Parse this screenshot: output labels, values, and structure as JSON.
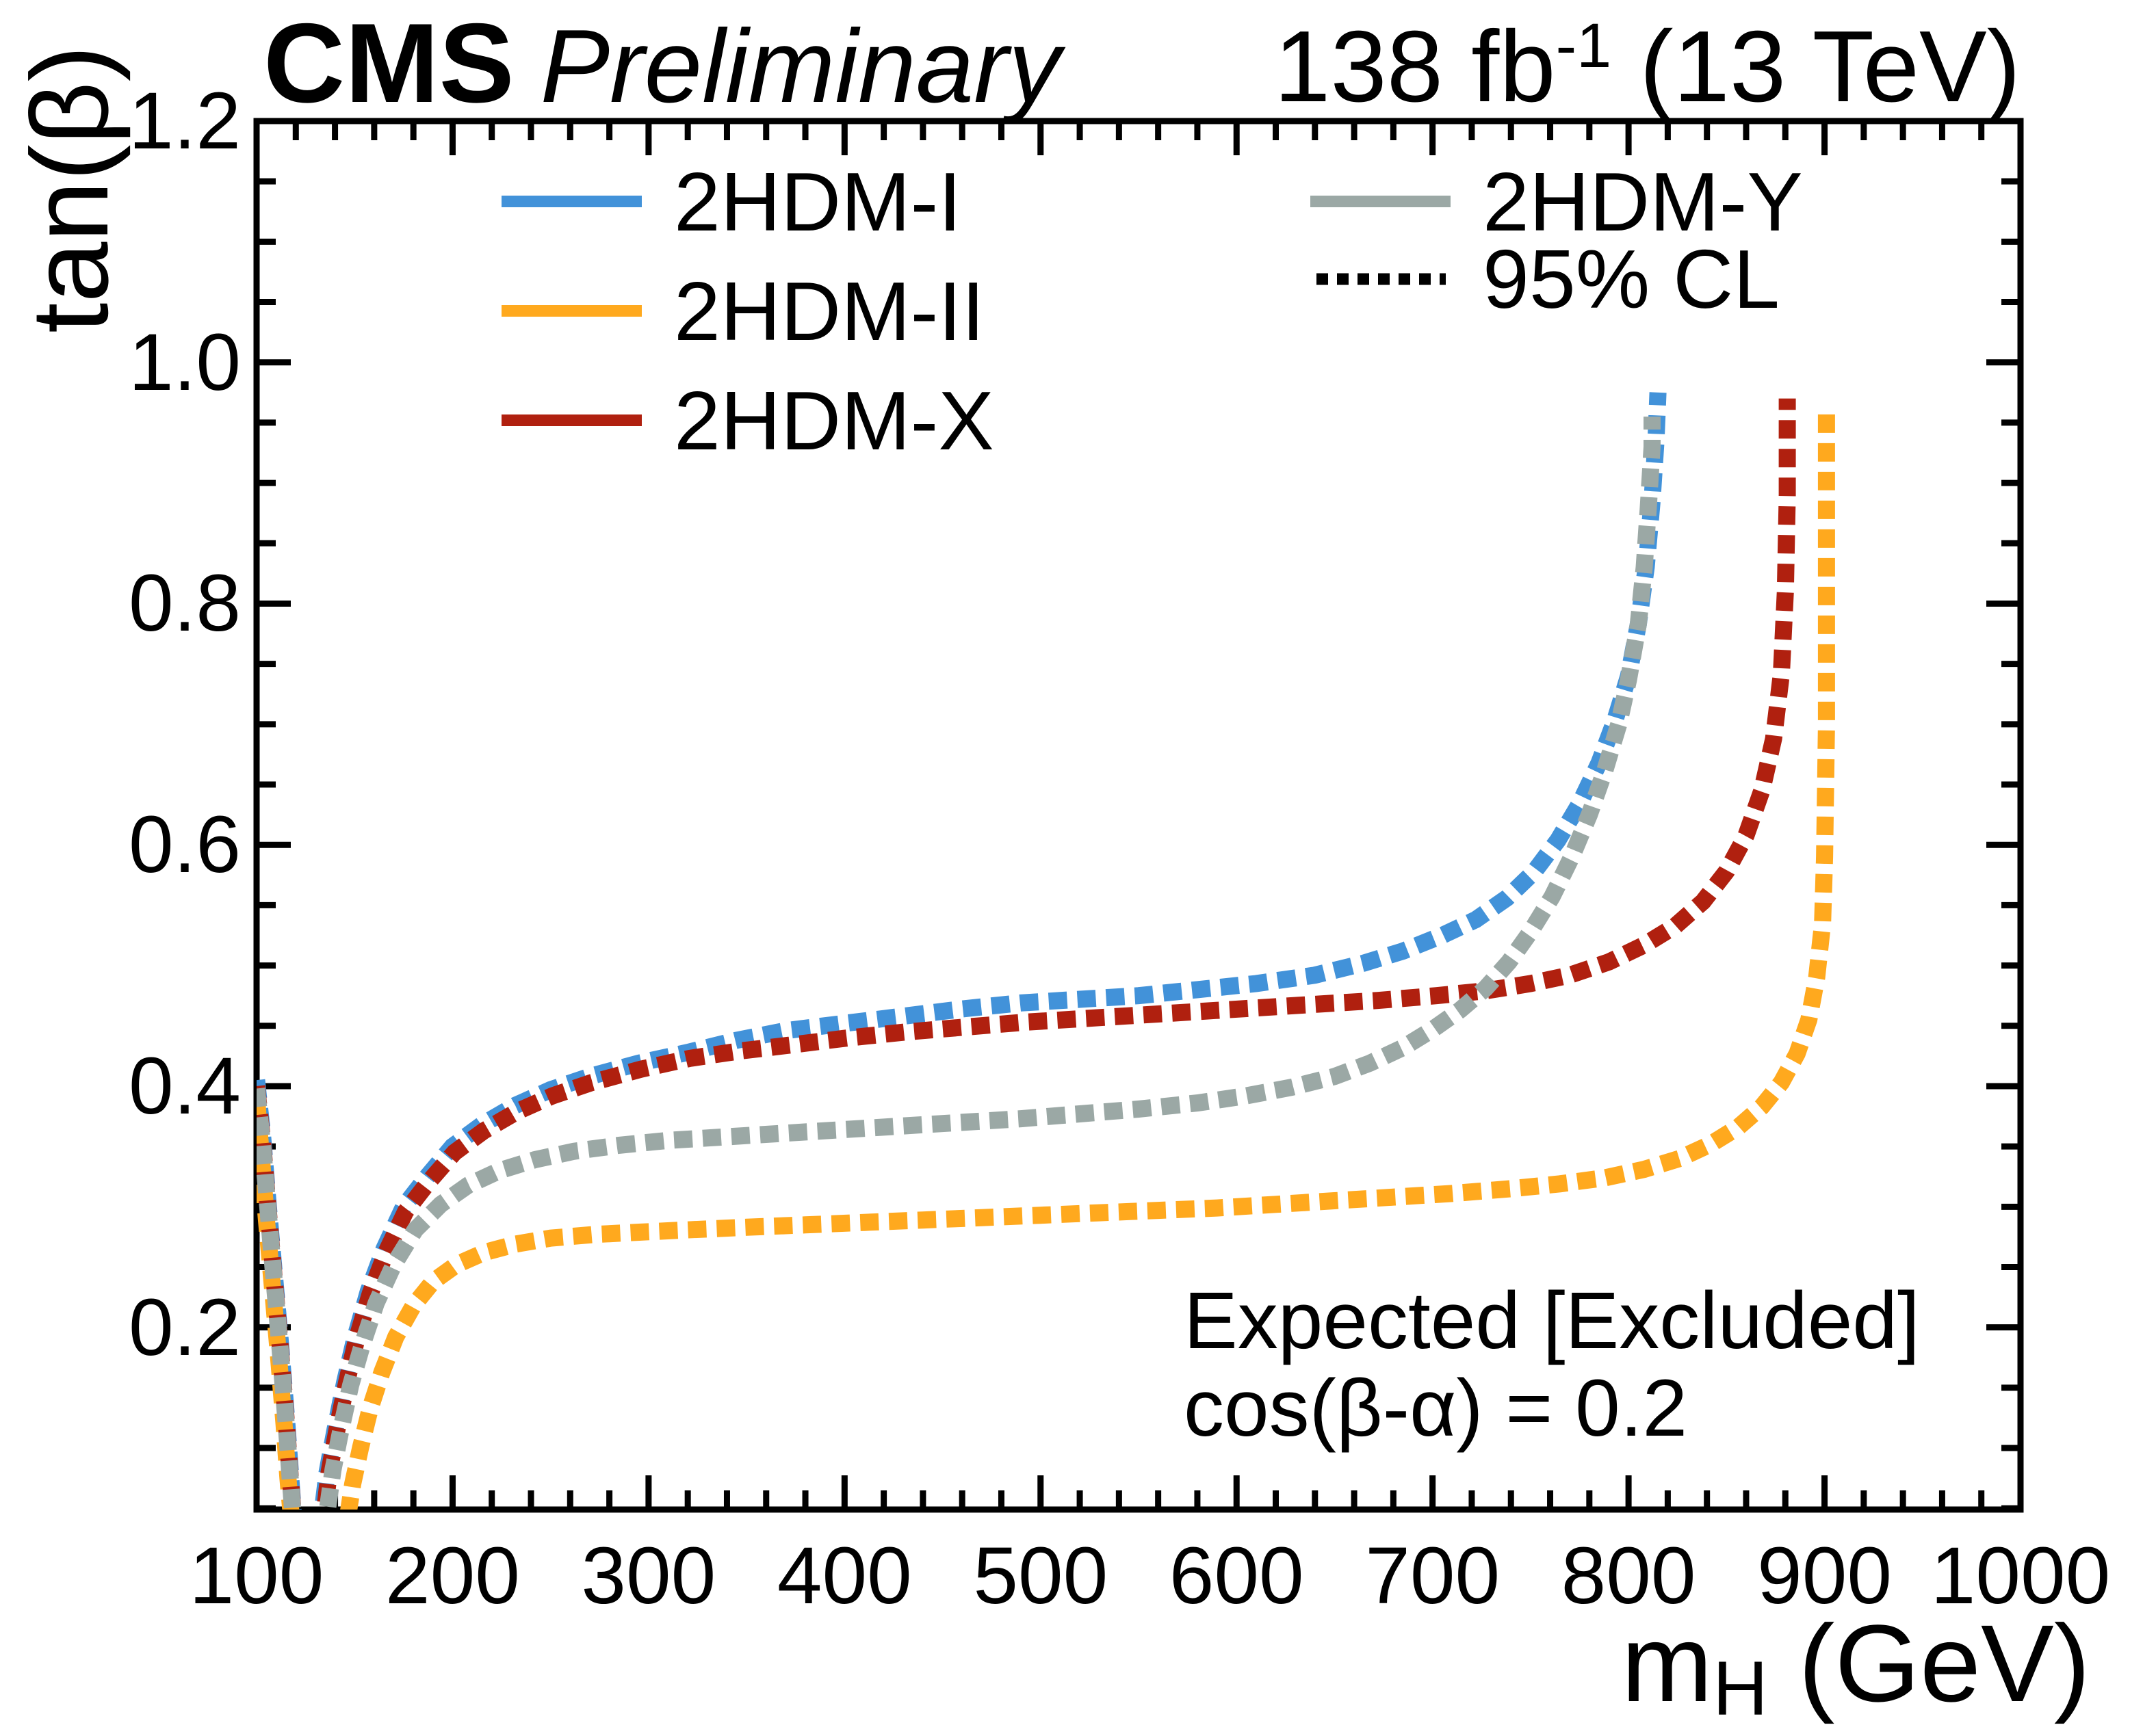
{
  "header": {
    "experiment": "CMS",
    "status": "Preliminary",
    "lumi_value": "138 fb",
    "lumi_exponent": "-1",
    "lumi_energy": " (13 TeV)"
  },
  "legend": {
    "left": [
      {
        "label": "2HDM-I",
        "color": "#4292D9",
        "line": "solid"
      },
      {
        "label": "2HDM-II",
        "color": "#FFA91E",
        "line": "solid"
      },
      {
        "label": "2HDM-X",
        "color": "#B0200F",
        "line": "solid"
      }
    ],
    "right": [
      {
        "label": "2HDM-Y",
        "color": "#9BA8A5",
        "line": "solid"
      },
      {
        "label": "95% CL",
        "color": "#000000",
        "line": "dotted"
      }
    ]
  },
  "chart_data": {
    "type": "line",
    "title": "",
    "xlabel_main": "m",
    "xlabel_sub": "H",
    "xlabel_rest": " (GeV)",
    "ylabel": "tan(β)",
    "xlim": [
      100,
      1000
    ],
    "ylim": [
      0.049,
      1.2
    ],
    "x_ticks": [
      100,
      200,
      300,
      400,
      500,
      600,
      700,
      800,
      900,
      1000
    ],
    "x_minor_step": 20,
    "y_ticks": [
      0.2,
      0.4,
      0.6,
      0.8,
      1.0,
      1.2
    ],
    "y_tick_labels": [
      "0.2",
      "0.4",
      "0.6",
      "0.8",
      "1.0",
      "1.2"
    ],
    "y_minor_step": 0.05,
    "grid": false,
    "legend_position": "top-inside",
    "annotations": [
      "Expected [Excluded]",
      "cos(β-α) = 0.2"
    ],
    "line_style_note": "all exclusion contours drawn as thick dashed (95% CL expected)",
    "series": [
      {
        "name": "2HDM-I",
        "color": "#4292D9",
        "style": "dashed",
        "points": [
          [
            100,
            0.405
          ],
          [
            103,
            0.36
          ],
          [
            106,
            0.3
          ],
          [
            109,
            0.245
          ],
          [
            112,
            0.19
          ],
          [
            115,
            0.13
          ],
          [
            117,
            0.085
          ],
          [
            119,
            0.04
          ],
          [
            133,
            0.04
          ],
          [
            136,
            0.08
          ],
          [
            140,
            0.115
          ],
          [
            145,
            0.155
          ],
          [
            150,
            0.19
          ],
          [
            157,
            0.23
          ],
          [
            165,
            0.265
          ],
          [
            175,
            0.3
          ],
          [
            187,
            0.325
          ],
          [
            200,
            0.35
          ],
          [
            215,
            0.368
          ],
          [
            232,
            0.384
          ],
          [
            250,
            0.397
          ],
          [
            270,
            0.408
          ],
          [
            295,
            0.419
          ],
          [
            320,
            0.428
          ],
          [
            345,
            0.438
          ],
          [
            370,
            0.446
          ],
          [
            400,
            0.452
          ],
          [
            430,
            0.458
          ],
          [
            460,
            0.464
          ],
          [
            490,
            0.469
          ],
          [
            520,
            0.472
          ],
          [
            550,
            0.475
          ],
          [
            580,
            0.48
          ],
          [
            610,
            0.485
          ],
          [
            640,
            0.492
          ],
          [
            665,
            0.502
          ],
          [
            685,
            0.512
          ],
          [
            705,
            0.525
          ],
          [
            722,
            0.538
          ],
          [
            738,
            0.556
          ],
          [
            752,
            0.578
          ],
          [
            764,
            0.604
          ],
          [
            775,
            0.634
          ],
          [
            785,
            0.668
          ],
          [
            793,
            0.703
          ],
          [
            800,
            0.74
          ],
          [
            805,
            0.783
          ],
          [
            809,
            0.83
          ],
          [
            812,
            0.885
          ],
          [
            814,
            0.935
          ],
          [
            815,
            0.975
          ]
        ]
      },
      {
        "name": "2HDM-II",
        "color": "#FFA91E",
        "style": "dashed",
        "points": [
          [
            100,
            0.39
          ],
          [
            102,
            0.35
          ],
          [
            105,
            0.29
          ],
          [
            108,
            0.235
          ],
          [
            111,
            0.18
          ],
          [
            114,
            0.12
          ],
          [
            116,
            0.075
          ],
          [
            118,
            0.038
          ],
          [
            146,
            0.038
          ],
          [
            149,
            0.07
          ],
          [
            153,
            0.1
          ],
          [
            158,
            0.133
          ],
          [
            164,
            0.163
          ],
          [
            171,
            0.192
          ],
          [
            180,
            0.218
          ],
          [
            190,
            0.238
          ],
          [
            202,
            0.252
          ],
          [
            216,
            0.262
          ],
          [
            232,
            0.269
          ],
          [
            250,
            0.274
          ],
          [
            272,
            0.277
          ],
          [
            296,
            0.279
          ],
          [
            322,
            0.281
          ],
          [
            350,
            0.283
          ],
          [
            380,
            0.285
          ],
          [
            410,
            0.287
          ],
          [
            440,
            0.289
          ],
          [
            470,
            0.291
          ],
          [
            500,
            0.293
          ],
          [
            530,
            0.295
          ],
          [
            560,
            0.297
          ],
          [
            590,
            0.299
          ],
          [
            620,
            0.302
          ],
          [
            650,
            0.305
          ],
          [
            680,
            0.308
          ],
          [
            710,
            0.311
          ],
          [
            740,
            0.315
          ],
          [
            765,
            0.319
          ],
          [
            788,
            0.324
          ],
          [
            808,
            0.331
          ],
          [
            826,
            0.34
          ],
          [
            842,
            0.352
          ],
          [
            856,
            0.366
          ],
          [
            868,
            0.383
          ],
          [
            878,
            0.403
          ],
          [
            886,
            0.427
          ],
          [
            892,
            0.455
          ],
          [
            896,
            0.49
          ],
          [
            899,
            0.535
          ],
          [
            900,
            0.59
          ],
          [
            901,
            0.7
          ],
          [
            901,
            0.962
          ]
        ]
      },
      {
        "name": "2HDM-X",
        "color": "#B0200F",
        "style": "dashed",
        "points": [
          [
            100,
            0.4
          ],
          [
            103,
            0.355
          ],
          [
            106,
            0.296
          ],
          [
            109,
            0.24
          ],
          [
            112,
            0.185
          ],
          [
            115,
            0.125
          ],
          [
            117,
            0.08
          ],
          [
            119,
            0.038
          ],
          [
            134,
            0.038
          ],
          [
            137,
            0.08
          ],
          [
            141,
            0.115
          ],
          [
            146,
            0.155
          ],
          [
            151,
            0.19
          ],
          [
            158,
            0.228
          ],
          [
            166,
            0.262
          ],
          [
            176,
            0.296
          ],
          [
            188,
            0.321
          ],
          [
            201,
            0.345
          ],
          [
            216,
            0.363
          ],
          [
            233,
            0.379
          ],
          [
            251,
            0.392
          ],
          [
            271,
            0.403
          ],
          [
            296,
            0.414
          ],
          [
            321,
            0.423
          ],
          [
            346,
            0.429
          ],
          [
            372,
            0.434
          ],
          [
            402,
            0.44
          ],
          [
            432,
            0.445
          ],
          [
            462,
            0.449
          ],
          [
            492,
            0.453
          ],
          [
            522,
            0.456
          ],
          [
            552,
            0.459
          ],
          [
            582,
            0.462
          ],
          [
            612,
            0.465
          ],
          [
            642,
            0.468
          ],
          [
            672,
            0.471
          ],
          [
            702,
            0.475
          ],
          [
            727,
            0.479
          ],
          [
            750,
            0.485
          ],
          [
            770,
            0.492
          ],
          [
            790,
            0.503
          ],
          [
            808,
            0.517
          ],
          [
            824,
            0.533
          ],
          [
            838,
            0.553
          ],
          [
            850,
            0.578
          ],
          [
            860,
            0.608
          ],
          [
            868,
            0.645
          ],
          [
            874,
            0.688
          ],
          [
            878,
            0.742
          ],
          [
            880,
            0.81
          ],
          [
            881,
            0.89
          ],
          [
            881,
            0.97
          ]
        ]
      },
      {
        "name": "2HDM-Y",
        "color": "#9BA8A5",
        "style": "dashed",
        "points": [
          [
            100,
            0.398
          ],
          [
            103,
            0.352
          ],
          [
            106,
            0.294
          ],
          [
            109,
            0.238
          ],
          [
            112,
            0.182
          ],
          [
            115,
            0.122
          ],
          [
            117,
            0.078
          ],
          [
            119,
            0.036
          ],
          [
            135,
            0.036
          ],
          [
            139,
            0.082
          ],
          [
            143,
            0.115
          ],
          [
            148,
            0.152
          ],
          [
            154,
            0.186
          ],
          [
            161,
            0.22
          ],
          [
            170,
            0.252
          ],
          [
            181,
            0.281
          ],
          [
            194,
            0.302
          ],
          [
            208,
            0.318
          ],
          [
            224,
            0.33
          ],
          [
            242,
            0.339
          ],
          [
            262,
            0.346
          ],
          [
            285,
            0.351
          ],
          [
            310,
            0.355
          ],
          [
            340,
            0.358
          ],
          [
            370,
            0.361
          ],
          [
            400,
            0.364
          ],
          [
            430,
            0.367
          ],
          [
            460,
            0.37
          ],
          [
            490,
            0.373
          ],
          [
            520,
            0.377
          ],
          [
            550,
            0.381
          ],
          [
            580,
            0.386
          ],
          [
            605,
            0.392
          ],
          [
            628,
            0.399
          ],
          [
            650,
            0.408
          ],
          [
            668,
            0.419
          ],
          [
            685,
            0.432
          ],
          [
            700,
            0.447
          ],
          [
            714,
            0.463
          ],
          [
            727,
            0.481
          ],
          [
            739,
            0.503
          ],
          [
            750,
            0.528
          ],
          [
            761,
            0.557
          ],
          [
            771,
            0.59
          ],
          [
            780,
            0.625
          ],
          [
            788,
            0.662
          ],
          [
            795,
            0.7
          ],
          [
            800,
            0.737
          ],
          [
            805,
            0.783
          ],
          [
            808,
            0.83
          ],
          [
            810,
            0.878
          ],
          [
            812,
            0.93
          ],
          [
            812,
            0.955
          ]
        ]
      },
      {
        "name": "95% CL",
        "color": "#000000",
        "style": "dotted",
        "points": []
      }
    ]
  }
}
